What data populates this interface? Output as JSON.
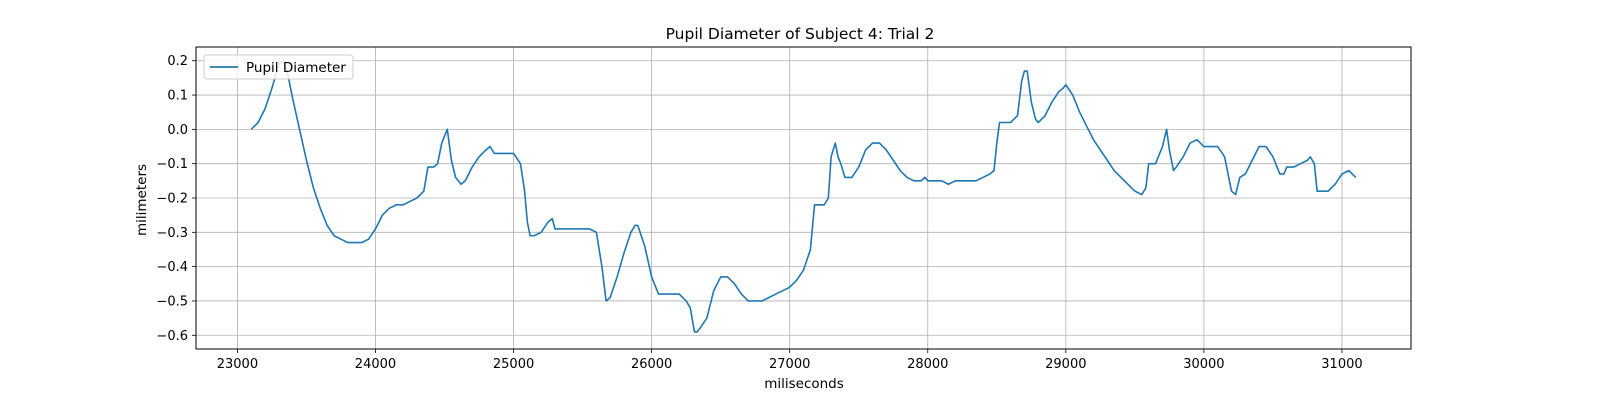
{
  "chart_data": {
    "type": "line",
    "title": "Pupil Diameter of Subject 4: Trial 2",
    "xlabel": "miliseconds",
    "ylabel": "milimeters",
    "xlim": [
      22700,
      31500
    ],
    "ylim": [
      -0.64,
      0.24
    ],
    "xticks": [
      23000,
      24000,
      25000,
      26000,
      27000,
      28000,
      29000,
      30000,
      31000
    ],
    "yticks": [
      -0.6,
      -0.5,
      -0.4,
      -0.3,
      -0.2,
      -0.1,
      0.0,
      0.1,
      0.2
    ],
    "grid": true,
    "legend": {
      "position": "upper-left"
    },
    "colors": {
      "line": "#1f77b4",
      "grid": "#b0b0b0"
    },
    "series": [
      {
        "name": "Pupil Diameter",
        "x": [
          23100,
          23150,
          23200,
          23250,
          23300,
          23330,
          23360,
          23400,
          23450,
          23500,
          23550,
          23600,
          23650,
          23700,
          23750,
          23800,
          23850,
          23900,
          23950,
          24000,
          24050,
          24100,
          24150,
          24200,
          24250,
          24300,
          24350,
          24380,
          24420,
          24450,
          24480,
          24520,
          24550,
          24580,
          24620,
          24650,
          24700,
          24750,
          24800,
          24830,
          24860,
          24900,
          24950,
          25000,
          25050,
          25080,
          25100,
          25120,
          25150,
          25200,
          25250,
          25280,
          25300,
          25330,
          25400,
          25500,
          25550,
          25600,
          25640,
          25670,
          25700,
          25750,
          25800,
          25850,
          25880,
          25900,
          25950,
          26000,
          26050,
          26100,
          26150,
          26200,
          26250,
          26280,
          26310,
          26330,
          26350,
          26400,
          26450,
          26500,
          26550,
          26600,
          26650,
          26700,
          26750,
          26800,
          26850,
          26900,
          26950,
          27000,
          27050,
          27100,
          27150,
          27180,
          27200,
          27220,
          27250,
          27280,
          27300,
          27330,
          27350,
          27370,
          27400,
          27450,
          27500,
          27550,
          27600,
          27650,
          27700,
          27750,
          27800,
          27850,
          27900,
          27950,
          27980,
          28000,
          28050,
          28100,
          28150,
          28200,
          28250,
          28300,
          28350,
          28400,
          28450,
          28480,
          28500,
          28520,
          28550,
          28600,
          28650,
          28680,
          28700,
          28720,
          28750,
          28780,
          28800,
          28850,
          28900,
          28950,
          28980,
          29000,
          29050,
          29100,
          29150,
          29200,
          29250,
          29300,
          29350,
          29400,
          29450,
          29500,
          29550,
          29580,
          29600,
          29620,
          29650,
          29700,
          29730,
          29750,
          29780,
          29800,
          29850,
          29900,
          29950,
          30000,
          30050,
          30100,
          30150,
          30200,
          30230,
          30260,
          30300,
          30350,
          30400,
          30450,
          30500,
          30550,
          30580,
          30600,
          30650,
          30700,
          30750,
          30770,
          30800,
          30820,
          30850,
          30900,
          30950,
          31000,
          31050,
          31100
        ],
        "values": [
          0.0,
          0.02,
          0.06,
          0.12,
          0.19,
          0.2,
          0.17,
          0.09,
          0.0,
          -0.09,
          -0.17,
          -0.23,
          -0.28,
          -0.31,
          -0.32,
          -0.33,
          -0.33,
          -0.33,
          -0.32,
          -0.29,
          -0.25,
          -0.23,
          -0.22,
          -0.22,
          -0.21,
          -0.2,
          -0.18,
          -0.11,
          -0.11,
          -0.1,
          -0.04,
          0.0,
          -0.09,
          -0.14,
          -0.16,
          -0.15,
          -0.11,
          -0.08,
          -0.06,
          -0.05,
          -0.07,
          -0.07,
          -0.07,
          -0.07,
          -0.1,
          -0.18,
          -0.27,
          -0.31,
          -0.31,
          -0.3,
          -0.27,
          -0.26,
          -0.29,
          -0.29,
          -0.29,
          -0.29,
          -0.29,
          -0.3,
          -0.4,
          -0.5,
          -0.49,
          -0.43,
          -0.36,
          -0.3,
          -0.28,
          -0.28,
          -0.34,
          -0.43,
          -0.48,
          -0.48,
          -0.48,
          -0.48,
          -0.5,
          -0.52,
          -0.59,
          -0.59,
          -0.58,
          -0.55,
          -0.47,
          -0.43,
          -0.43,
          -0.45,
          -0.48,
          -0.5,
          -0.5,
          -0.5,
          -0.49,
          -0.48,
          -0.47,
          -0.46,
          -0.44,
          -0.41,
          -0.35,
          -0.22,
          -0.22,
          -0.22,
          -0.22,
          -0.2,
          -0.08,
          -0.04,
          -0.08,
          -0.1,
          -0.14,
          -0.14,
          -0.11,
          -0.06,
          -0.04,
          -0.04,
          -0.06,
          -0.09,
          -0.12,
          -0.14,
          -0.15,
          -0.15,
          -0.14,
          -0.15,
          -0.15,
          -0.15,
          -0.16,
          -0.15,
          -0.15,
          -0.15,
          -0.15,
          -0.14,
          -0.13,
          -0.12,
          -0.04,
          0.02,
          0.02,
          0.02,
          0.04,
          0.14,
          0.17,
          0.17,
          0.08,
          0.03,
          0.02,
          0.04,
          0.08,
          0.11,
          0.12,
          0.13,
          0.1,
          0.05,
          0.01,
          -0.03,
          -0.06,
          -0.09,
          -0.12,
          -0.14,
          -0.16,
          -0.18,
          -0.19,
          -0.17,
          -0.1,
          -0.1,
          -0.1,
          -0.05,
          0.0,
          -0.06,
          -0.12,
          -0.11,
          -0.08,
          -0.04,
          -0.03,
          -0.05,
          -0.05,
          -0.05,
          -0.08,
          -0.18,
          -0.19,
          -0.14,
          -0.13,
          -0.09,
          -0.05,
          -0.05,
          -0.08,
          -0.13,
          -0.13,
          -0.11,
          -0.11,
          -0.1,
          -0.09,
          -0.08,
          -0.1,
          -0.18,
          -0.18,
          -0.18,
          -0.16,
          -0.13,
          -0.12,
          -0.14
        ]
      }
    ]
  }
}
